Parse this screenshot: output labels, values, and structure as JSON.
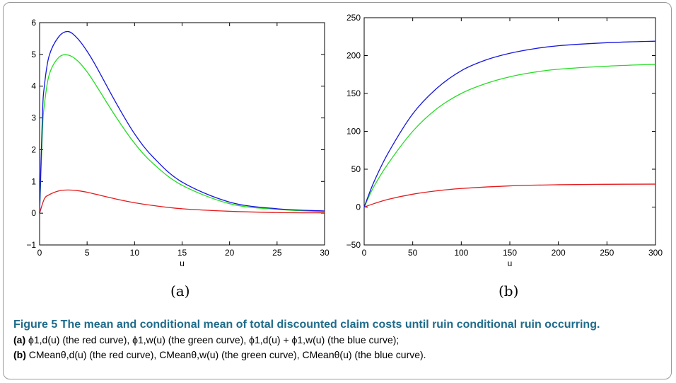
{
  "chart_data": [
    {
      "type": "line",
      "subfigure_label": "(a)",
      "xlabel": "u",
      "ylabel": "",
      "xlim": [
        0,
        30
      ],
      "ylim": [
        -1,
        6
      ],
      "xticks": [
        "0",
        "5",
        "10",
        "15",
        "20",
        "25",
        "30"
      ],
      "yticks": [
        "−1",
        "0",
        "1",
        "2",
        "3",
        "4",
        "5",
        "6"
      ],
      "series": [
        {
          "color": "#e41a1c",
          "x": [
            0,
            0.5,
            1,
            2,
            3,
            4,
            5,
            6,
            8,
            10,
            12,
            15,
            20,
            25,
            30
          ],
          "y": [
            0,
            0.45,
            0.58,
            0.7,
            0.73,
            0.71,
            0.66,
            0.59,
            0.45,
            0.33,
            0.24,
            0.14,
            0.06,
            0.02,
            0.01
          ]
        },
        {
          "color": "#22dd22",
          "x": [
            0,
            0.3,
            0.5,
            1,
            2,
            3,
            4,
            5,
            6,
            8,
            10,
            12,
            15,
            20,
            25,
            30
          ],
          "y": [
            0,
            2.6,
            3.4,
            4.35,
            4.9,
            4.98,
            4.8,
            4.45,
            4.0,
            3.05,
            2.2,
            1.55,
            0.88,
            0.3,
            0.12,
            0.05
          ]
        },
        {
          "color": "#1515dd",
          "x": [
            0,
            0.3,
            0.5,
            1,
            2,
            3,
            4,
            5,
            6,
            8,
            10,
            12,
            15,
            20,
            25,
            30
          ],
          "y": [
            0,
            3.1,
            4.0,
            4.95,
            5.55,
            5.72,
            5.5,
            5.1,
            4.6,
            3.5,
            2.5,
            1.75,
            0.98,
            0.35,
            0.14,
            0.07
          ]
        }
      ],
      "grid": false
    },
    {
      "type": "line",
      "subfigure_label": "(b)",
      "xlabel": "u",
      "ylabel": "",
      "xlim": [
        0,
        300
      ],
      "ylim": [
        -50,
        250
      ],
      "xticks": [
        "0",
        "50",
        "100",
        "150",
        "200",
        "250",
        "300"
      ],
      "yticks": [
        "−50",
        "0",
        "50",
        "100",
        "150",
        "200",
        "250"
      ],
      "series": [
        {
          "color": "#e41a1c",
          "x": [
            0,
            10,
            25,
            50,
            75,
            100,
            150,
            200,
            250,
            300
          ],
          "y": [
            0,
            4.5,
            10.3,
            17.0,
            21.5,
            24.5,
            28.0,
            29.5,
            30.1,
            30.3
          ]
        },
        {
          "color": "#22dd22",
          "x": [
            0,
            10,
            25,
            50,
            75,
            100,
            125,
            150,
            175,
            200,
            250,
            300
          ],
          "y": [
            0,
            27,
            58,
            100,
            130,
            150,
            163,
            172,
            178,
            182,
            186,
            188.5
          ]
        },
        {
          "color": "#1515dd",
          "x": [
            0,
            10,
            25,
            50,
            75,
            100,
            125,
            150,
            175,
            200,
            250,
            300
          ],
          "y": [
            0,
            33,
            72,
            123,
            157,
            180,
            194,
            203,
            209,
            213,
            217,
            219
          ]
        }
      ],
      "grid": false
    }
  ],
  "caption": {
    "title": "Figure 5  The mean and conditional mean of total discounted claim costs until ruin conditional ruin occurring.",
    "a_label": "(a)",
    "a_text": "ϕ1,d(u) (the red curve), ϕ1,w(u) (the green curve), ϕ1,d(u) + ϕ1,w(u) (the blue curve);",
    "b_label": "(b)",
    "b_text": "CMeanθ,d(u) (the red curve), CMeanθ,w(u) (the green curve), CMeanθ(u) (the blue curve)."
  }
}
